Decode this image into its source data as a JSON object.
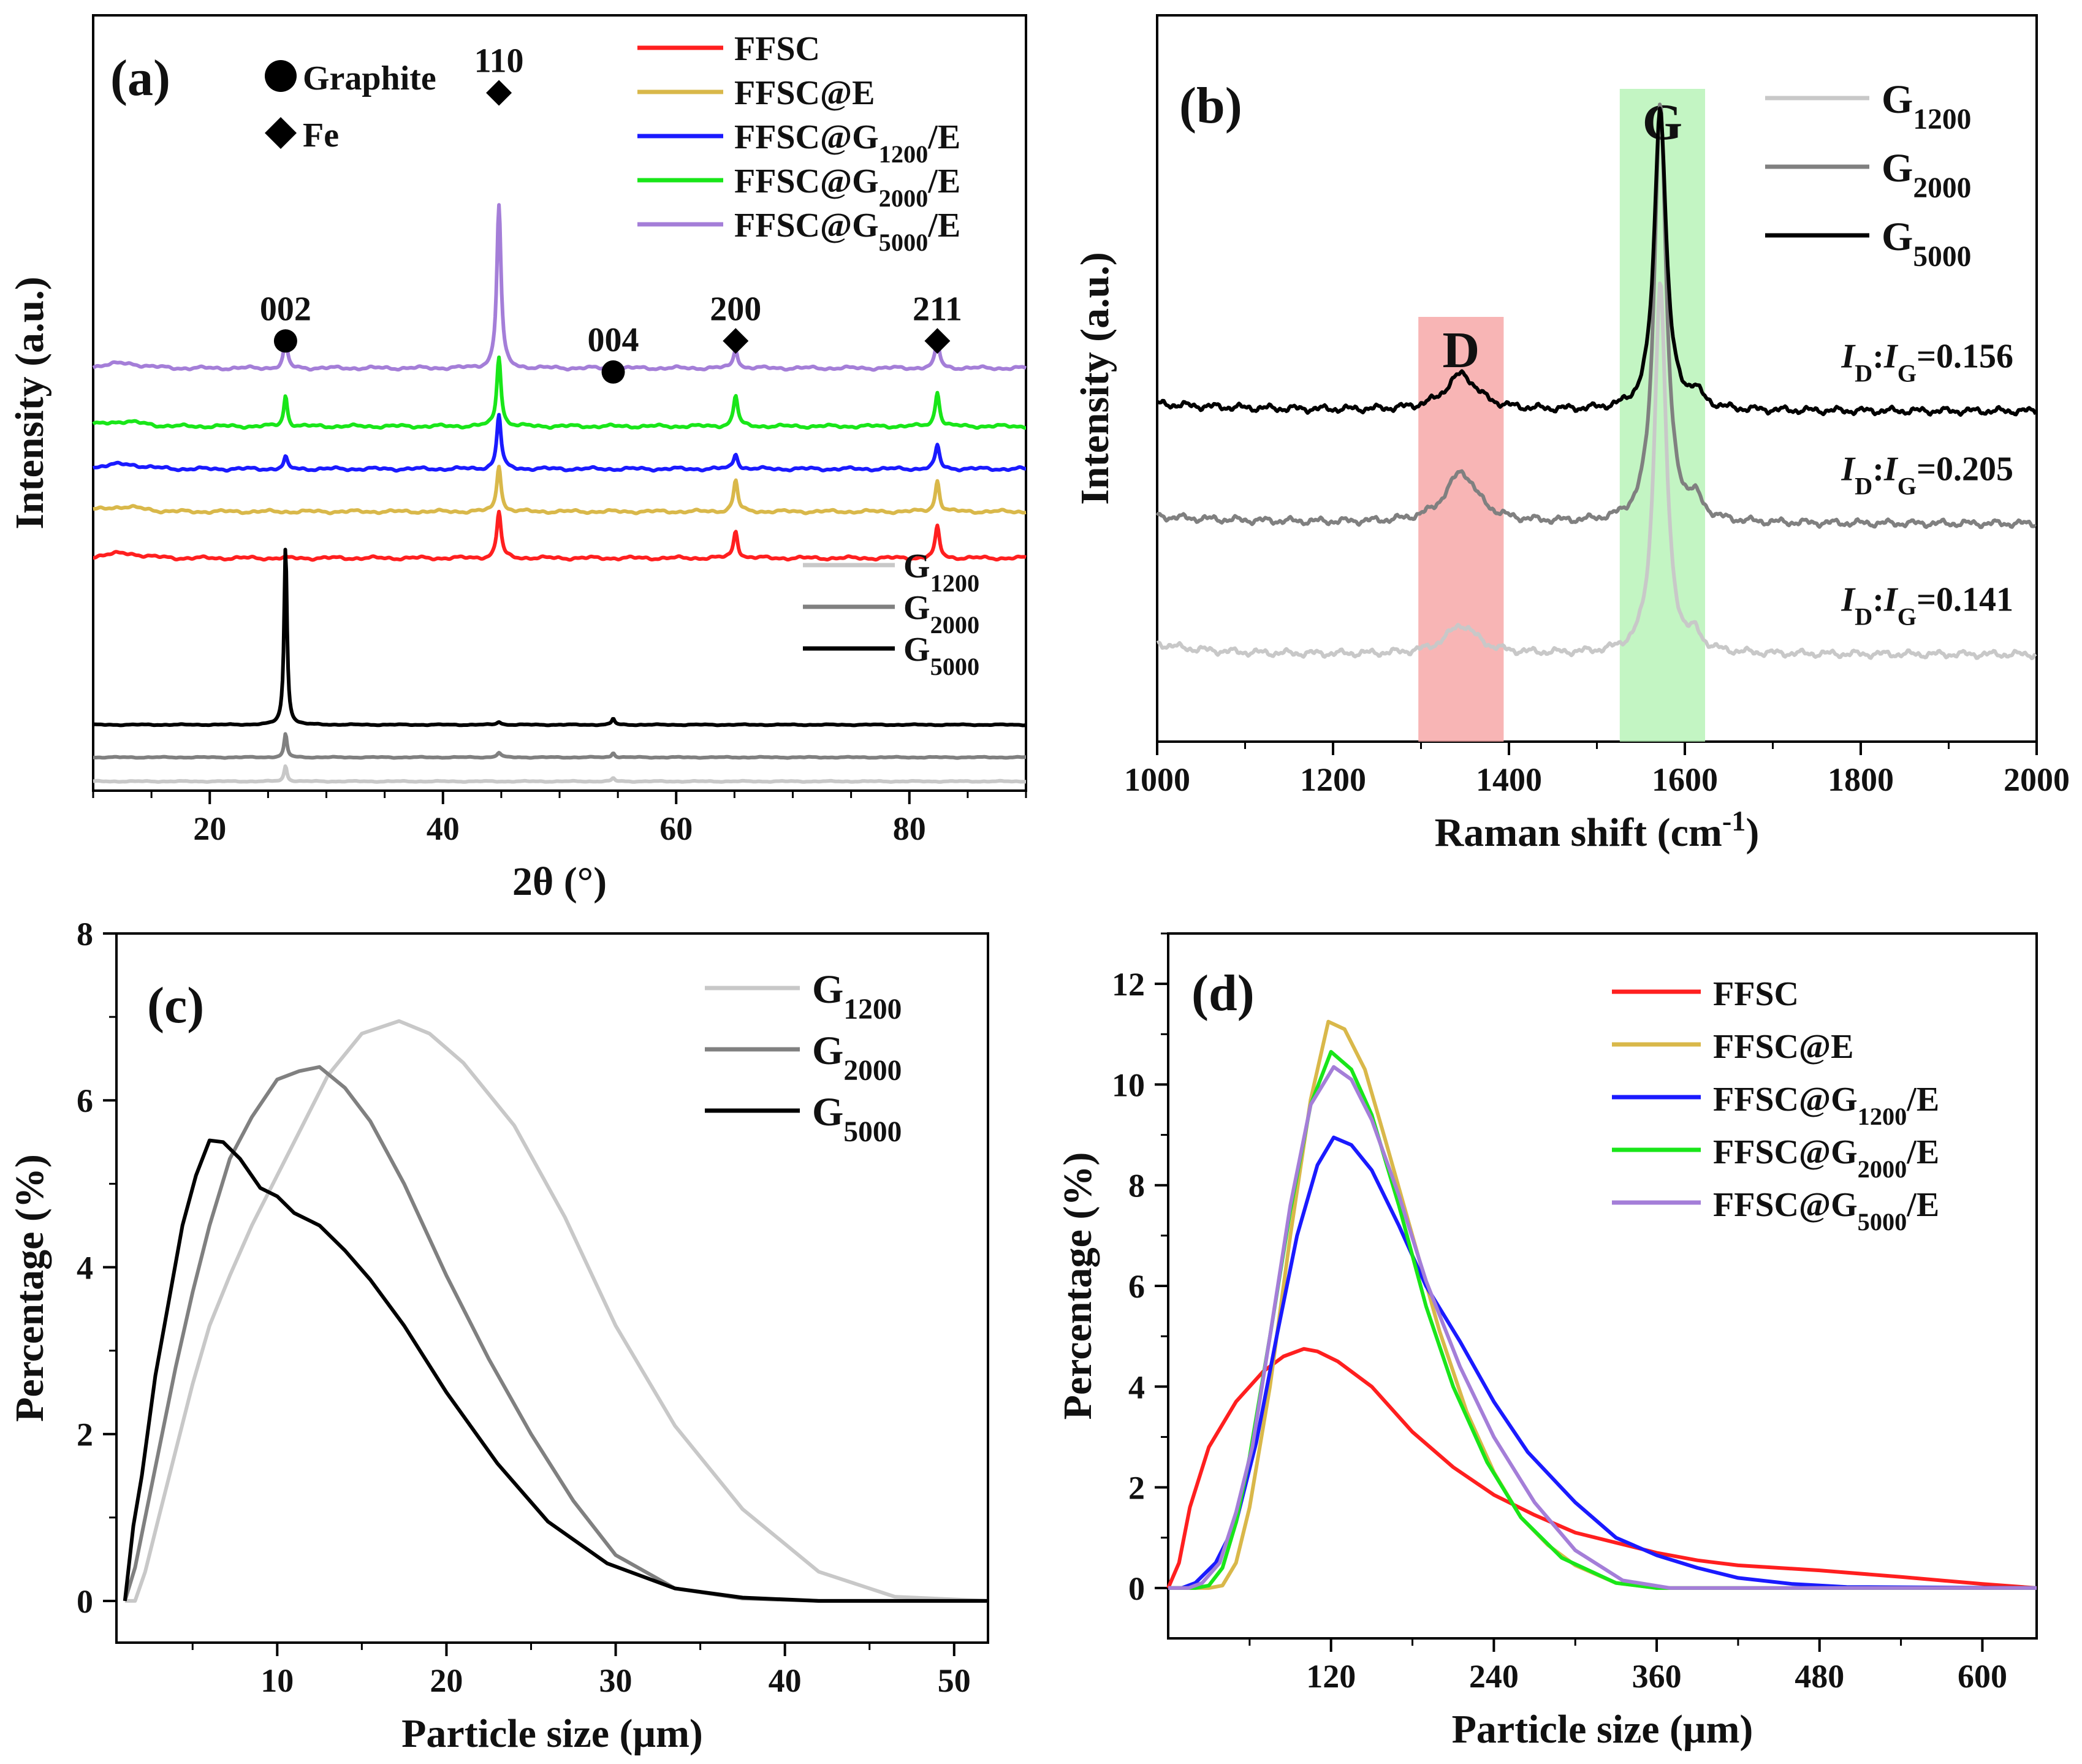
{
  "figure": {
    "panels": [
      "a",
      "b",
      "c",
      "d"
    ]
  },
  "chart_data": [
    {
      "id": "a",
      "type": "line",
      "panel_label": "(a)",
      "xlabel": "2θ (°)",
      "ylabel": "Intensity (a.u.)",
      "xlim": [
        10,
        90
      ],
      "xticks": [
        20,
        40,
        60,
        80
      ],
      "yticks": [],
      "y_units": "arbitrary (offset stacked)",
      "markers_legend": [
        {
          "symbol": "circle",
          "label": "Graphite"
        },
        {
          "symbol": "diamond",
          "label": "Fe"
        }
      ],
      "peak_labels": [
        {
          "x": 26.5,
          "label": "002",
          "symbol": "circle",
          "y_level": 0.58
        },
        {
          "x": 44.8,
          "label": "110",
          "symbol": "diamond",
          "y_level": 0.9
        },
        {
          "x": 54.6,
          "label": "004",
          "symbol": "circle",
          "y_level": 0.54
        },
        {
          "x": 65.1,
          "label": "200",
          "symbol": "diamond",
          "y_level": 0.58
        },
        {
          "x": 82.4,
          "label": "211",
          "symbol": "diamond",
          "y_level": 0.58
        }
      ],
      "series": [
        {
          "name": "FFSC",
          "base": "FFSC",
          "sub": "",
          "suffix": "",
          "color": "#ff1f1f",
          "offset": 0.3,
          "peaks": [
            [
              44.8,
              0.06,
              0.22
            ],
            [
              65.1,
              0.035,
              0.22
            ],
            [
              82.4,
              0.04,
              0.22
            ]
          ]
        },
        {
          "name": "FFSC@E",
          "base": "FFSC@E",
          "sub": "",
          "suffix": "",
          "color": "#d9b84a",
          "offset": 0.36,
          "peaks": [
            [
              44.8,
              0.06,
              0.22
            ],
            [
              65.1,
              0.04,
              0.22
            ],
            [
              82.4,
              0.04,
              0.22
            ]
          ]
        },
        {
          "name": "FFSC@G1200/E",
          "base": "FFSC@G",
          "sub": "1200",
          "suffix": "/E",
          "color": "#1a1aff",
          "offset": 0.415,
          "peaks": [
            [
              26.5,
              0.015,
              0.18
            ],
            [
              44.8,
              0.07,
              0.22
            ],
            [
              65.1,
              0.02,
              0.22
            ],
            [
              82.4,
              0.03,
              0.22
            ]
          ]
        },
        {
          "name": "FFSC@G2000/E",
          "base": "FFSC@G",
          "sub": "2000",
          "suffix": "/E",
          "color": "#19e619",
          "offset": 0.47,
          "peaks": [
            [
              26.5,
              0.04,
              0.18
            ],
            [
              44.8,
              0.09,
              0.22
            ],
            [
              65.1,
              0.04,
              0.22
            ],
            [
              82.4,
              0.045,
              0.22
            ]
          ]
        },
        {
          "name": "FFSC@G5000/E",
          "base": "FFSC@G",
          "sub": "5000",
          "suffix": "/E",
          "color": "#a47ed8",
          "offset": 0.545,
          "peaks": [
            [
              26.5,
              0.04,
              0.18
            ],
            [
              44.8,
              0.21,
              0.22
            ],
            [
              65.1,
              0.025,
              0.22
            ],
            [
              82.4,
              0.035,
              0.22
            ]
          ]
        },
        {
          "name": "G1200",
          "base": "G",
          "sub": "1200",
          "suffix": "",
          "color": "#c8c8c8",
          "offset": 0.012,
          "peaks": [
            [
              26.5,
              0.02,
              0.15
            ],
            [
              54.6,
              0.004,
              0.15
            ]
          ]
        },
        {
          "name": "G2000",
          "base": "G",
          "sub": "2000",
          "suffix": "",
          "color": "#808080",
          "offset": 0.043,
          "peaks": [
            [
              26.5,
              0.03,
              0.15
            ],
            [
              44.8,
              0.006,
              0.2
            ],
            [
              54.6,
              0.006,
              0.15
            ]
          ]
        },
        {
          "name": "G5000",
          "base": "G",
          "sub": "5000",
          "suffix": "",
          "color": "#000000",
          "offset": 0.085,
          "peaks": [
            [
              26.5,
              0.23,
              0.15
            ],
            [
              44.8,
              0.004,
              0.2
            ],
            [
              54.6,
              0.008,
              0.15
            ]
          ]
        }
      ]
    },
    {
      "id": "b",
      "type": "line",
      "panel_label": "(b)",
      "xlabel": "Raman shift (cm",
      "xlabel_sup": "-1",
      "xlabel_suffix": ")",
      "ylabel": "Intensity (a.u.)",
      "xlim": [
        1000,
        2000
      ],
      "xticks": [
        1000,
        1200,
        1400,
        1600,
        1800,
        2000
      ],
      "yticks": [],
      "bands": [
        {
          "label": "D",
          "x_range": [
            1297,
            1394
          ],
          "color": "#f7a8a8",
          "text_color": "#e8463c"
        },
        {
          "label": "G",
          "x_range": [
            1526,
            1623
          ],
          "color": "#b9f3b9",
          "text_color": "#3cb464"
        }
      ],
      "series": [
        {
          "name": "G1200",
          "base": "G",
          "sub": "1200",
          "color": "#c8c8c8",
          "offset": 0.12,
          "ratio": "0.141",
          "peaks": [
            [
              1346,
              0.04,
              22
            ],
            [
              1572,
              0.51,
              8
            ],
            [
              1612,
              0.02,
              8
            ]
          ]
        },
        {
          "name": "G2000",
          "base": "G",
          "sub": "2000",
          "color": "#808080",
          "offset": 0.3,
          "ratio": "0.205",
          "peaks": [
            [
              1346,
              0.07,
              22
            ],
            [
              1572,
              0.58,
              8
            ],
            [
              1612,
              0.025,
              10
            ]
          ]
        },
        {
          "name": "G5000",
          "base": "G",
          "sub": "5000",
          "color": "#000000",
          "offset": 0.455,
          "ratio": "0.156",
          "peaks": [
            [
              1346,
              0.05,
              22
            ],
            [
              1572,
              0.42,
              8
            ],
            [
              1612,
              0.02,
              10
            ]
          ]
        }
      ],
      "ratio_label": {
        "I": "I",
        "D": "D",
        "G": "G",
        "eq": "="
      }
    },
    {
      "id": "c",
      "type": "line",
      "panel_label": "(c)",
      "xlabel": "Particle size (μm)",
      "ylabel": "Percentage (%)",
      "xlim": [
        0.5,
        52
      ],
      "ylim": [
        -0.5,
        8
      ],
      "xticks": [
        10,
        20,
        30,
        40,
        50
      ],
      "yticks": [
        0,
        2,
        4,
        6,
        8
      ],
      "series": [
        {
          "name": "G1200",
          "base": "G",
          "sub": "1200",
          "color": "#c8c8c8",
          "x": [
            1,
            1.6,
            2.2,
            3,
            4,
            5,
            6,
            7.2,
            8.5,
            10,
            11.5,
            13,
            15,
            17.2,
            19,
            21,
            24,
            27,
            30,
            33.5,
            37.5,
            42,
            46.5,
            52
          ],
          "y": [
            0,
            0,
            0.35,
            1.0,
            1.8,
            2.6,
            3.3,
            3.9,
            4.5,
            5.1,
            5.7,
            6.3,
            6.8,
            6.95,
            6.8,
            6.45,
            5.7,
            4.6,
            3.3,
            2.1,
            1.1,
            0.35,
            0.05,
            0
          ]
        },
        {
          "name": "G2000",
          "base": "G",
          "sub": "2000",
          "color": "#808080",
          "x": [
            1,
            1.6,
            2.2,
            3,
            4,
            5,
            6,
            7.2,
            8.5,
            10,
            11.3,
            12.5,
            14,
            15.5,
            17.5,
            20,
            22.5,
            25,
            27.5,
            30,
            33.5,
            37.5,
            42,
            52
          ],
          "y": [
            0,
            0.4,
            1.0,
            1.8,
            2.8,
            3.7,
            4.5,
            5.3,
            5.8,
            6.25,
            6.35,
            6.4,
            6.15,
            5.75,
            5.0,
            3.9,
            2.9,
            2.0,
            1.2,
            0.55,
            0.15,
            0.03,
            0,
            0
          ]
        },
        {
          "name": "G5000",
          "base": "G",
          "sub": "5000",
          "color": "#000000",
          "x": [
            1,
            1.5,
            2,
            2.8,
            3.6,
            4.4,
            5.2,
            6,
            6.8,
            7.8,
            9,
            10,
            11,
            12.5,
            14,
            15.5,
            17.5,
            20,
            23,
            26,
            29.5,
            33.5,
            37.5,
            42,
            52
          ],
          "y": [
            0,
            0.9,
            1.5,
            2.7,
            3.6,
            4.5,
            5.1,
            5.52,
            5.5,
            5.3,
            4.95,
            4.85,
            4.65,
            4.5,
            4.2,
            3.85,
            3.3,
            2.5,
            1.65,
            0.95,
            0.45,
            0.15,
            0.04,
            0,
            0
          ]
        }
      ]
    },
    {
      "id": "d",
      "type": "line",
      "panel_label": "(d)",
      "xlabel": "Particle size (μm)",
      "ylabel": "Percentage (%)",
      "xlim": [
        0,
        640
      ],
      "ylim": [
        -1,
        13
      ],
      "xticks": [
        120,
        240,
        360,
        480,
        600
      ],
      "yticks": [
        0,
        2,
        4,
        6,
        8,
        10,
        12
      ],
      "series": [
        {
          "name": "FFSC",
          "base": "FFSC",
          "sub": "",
          "suffix": "",
          "color": "#ff1f1f",
          "x": [
            0,
            8,
            16,
            30,
            50,
            70,
            85,
            100,
            110,
            125,
            150,
            180,
            210,
            240,
            270,
            300,
            330,
            360,
            390,
            420,
            480,
            540,
            600,
            640
          ],
          "y": [
            0,
            0.5,
            1.6,
            2.8,
            3.7,
            4.3,
            4.6,
            4.75,
            4.7,
            4.5,
            4.0,
            3.1,
            2.4,
            1.85,
            1.45,
            1.1,
            0.9,
            0.7,
            0.55,
            0.45,
            0.35,
            0.22,
            0.08,
            0
          ]
        },
        {
          "name": "FFSC@E",
          "base": "FFSC@E",
          "sub": "",
          "suffix": "",
          "color": "#d9b84a",
          "x": [
            0,
            30,
            40,
            50,
            60,
            75,
            90,
            105,
            118,
            130,
            145,
            160,
            180,
            200,
            220,
            240,
            260,
            280,
            300,
            330,
            360,
            640
          ],
          "y": [
            0,
            0,
            0.05,
            0.5,
            1.6,
            4.0,
            7.0,
            9.7,
            11.25,
            11.1,
            10.3,
            8.9,
            7.0,
            5.1,
            3.5,
            2.3,
            1.4,
            0.85,
            0.45,
            0.1,
            0,
            0
          ]
        },
        {
          "name": "FFSC@G1200/E",
          "base": "FFSC@G",
          "sub": "1200",
          "suffix": "/E",
          "color": "#1a1aff",
          "x": [
            0,
            10,
            20,
            35,
            50,
            65,
            80,
            95,
            110,
            122,
            135,
            150,
            170,
            190,
            215,
            240,
            265,
            300,
            330,
            360,
            390,
            420,
            460,
            500,
            640
          ],
          "y": [
            0,
            0,
            0.1,
            0.5,
            1.3,
            2.9,
            5.0,
            7.0,
            8.4,
            8.95,
            8.8,
            8.3,
            7.2,
            6.0,
            4.9,
            3.7,
            2.7,
            1.7,
            1.0,
            0.65,
            0.4,
            0.2,
            0.08,
            0.02,
            0
          ]
        },
        {
          "name": "FFSC@G2000/E",
          "base": "FFSC@G",
          "sub": "2000",
          "suffix": "/E",
          "color": "#19e619",
          "x": [
            0,
            20,
            30,
            40,
            50,
            60,
            75,
            90,
            105,
            120,
            135,
            150,
            170,
            190,
            210,
            235,
            260,
            290,
            330,
            360,
            640
          ],
          "y": [
            0,
            0,
            0.05,
            0.4,
            1.3,
            2.6,
            5.0,
            7.5,
            9.6,
            10.65,
            10.3,
            9.4,
            7.6,
            5.6,
            4.0,
            2.5,
            1.4,
            0.6,
            0.1,
            0,
            0
          ]
        },
        {
          "name": "FFSC@G5000/E",
          "base": "FFSC@G",
          "sub": "5000",
          "suffix": "/E",
          "color": "#a47ed8",
          "x": [
            0,
            15,
            25,
            38,
            50,
            62,
            75,
            90,
            105,
            122,
            135,
            150,
            170,
            190,
            215,
            240,
            270,
            300,
            335,
            370,
            640
          ],
          "y": [
            0,
            0,
            0.1,
            0.5,
            1.5,
            2.8,
            5.0,
            7.6,
            9.6,
            10.35,
            10.1,
            9.3,
            7.8,
            6.1,
            4.4,
            3.0,
            1.7,
            0.75,
            0.15,
            0,
            0
          ]
        }
      ]
    }
  ]
}
